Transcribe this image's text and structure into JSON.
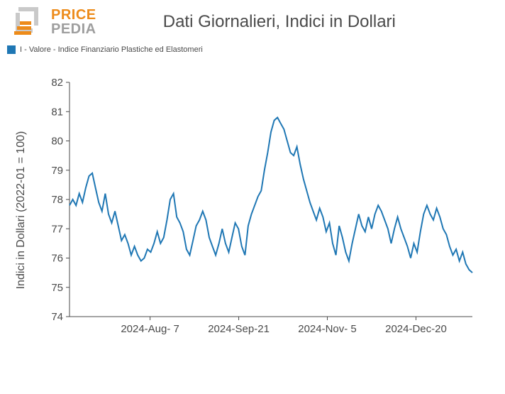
{
  "header": {
    "logo": {
      "line1": "PRICE",
      "line2": "PEDIA",
      "color1": "#ed8b1a",
      "color2": "#9e9e9e"
    },
    "title": "Dati Giornalieri, Indici in Dollari"
  },
  "legend": {
    "swatch_color": "#1f77b4",
    "label": "I - Valore - Indice Finanziario Plastiche ed Elastomeri"
  },
  "chart": {
    "type": "line",
    "y_axis_label": "Indici in Dollari (2022-01 = 100)",
    "ylim": [
      74,
      82
    ],
    "ytick_step": 1,
    "yticks": [
      74,
      75,
      76,
      77,
      78,
      79,
      80,
      81,
      82
    ],
    "xtick_labels": [
      "2024-Aug- 7",
      "2024-Sep-21",
      "2024-Nov- 5",
      "2024-Dec-20"
    ],
    "xtick_positions": [
      0.2,
      0.42,
      0.64,
      0.86
    ],
    "line_color": "#1f77b4",
    "line_width": 2,
    "background_color": "#ffffff",
    "axis_color": "#4a4a4a",
    "title_fontsize": 24,
    "label_fontsize": 16,
    "tick_fontsize": 15,
    "series": {
      "name": "I - Valore - Indice Finanziario Plastiche ed Elastomeri",
      "x": [
        0,
        1,
        2,
        3,
        4,
        5,
        6,
        7,
        8,
        9,
        10,
        11,
        12,
        13,
        14,
        15,
        16,
        17,
        18,
        19,
        20,
        21,
        22,
        23,
        24,
        25,
        26,
        27,
        28,
        29,
        30,
        31,
        32,
        33,
        34,
        35,
        36,
        37,
        38,
        39,
        40,
        41,
        42,
        43,
        44,
        45,
        46,
        47,
        48,
        49,
        50,
        51,
        52,
        53,
        54,
        55,
        56,
        57,
        58,
        59,
        60,
        61,
        62,
        63,
        64,
        65,
        66,
        67,
        68,
        69,
        70,
        71,
        72,
        73,
        74,
        75,
        76,
        77,
        78,
        79,
        80,
        81,
        82,
        83,
        84,
        85,
        86,
        87,
        88,
        89,
        90,
        91,
        92,
        93,
        94,
        95,
        96,
        97,
        98,
        99,
        100,
        101,
        102,
        103,
        104,
        105,
        106,
        107,
        108,
        109,
        110,
        111,
        112,
        113,
        114,
        115,
        116,
        117,
        118,
        119,
        120,
        121,
        122,
        123,
        124
      ],
      "y": [
        77.8,
        78.0,
        77.8,
        78.2,
        77.9,
        78.4,
        78.8,
        78.9,
        78.4,
        77.9,
        77.6,
        78.2,
        77.5,
        77.2,
        77.6,
        77.1,
        76.6,
        76.8,
        76.5,
        76.1,
        76.4,
        76.1,
        75.9,
        76.0,
        76.3,
        76.2,
        76.5,
        76.9,
        76.5,
        76.7,
        77.3,
        78.0,
        78.2,
        77.4,
        77.2,
        76.9,
        76.3,
        76.1,
        76.6,
        77.1,
        77.3,
        77.6,
        77.3,
        76.7,
        76.4,
        76.1,
        76.5,
        77.0,
        76.5,
        76.2,
        76.7,
        77.2,
        77.0,
        76.4,
        76.1,
        77.1,
        77.5,
        77.8,
        78.1,
        78.3,
        79.0,
        79.6,
        80.3,
        80.7,
        80.8,
        80.6,
        80.4,
        80.0,
        79.6,
        79.5,
        79.8,
        79.2,
        78.7,
        78.3,
        77.9,
        77.6,
        77.3,
        77.7,
        77.4,
        76.9,
        77.2,
        76.5,
        76.1,
        77.1,
        76.7,
        76.2,
        75.9,
        76.5,
        77.0,
        77.5,
        77.1,
        76.9,
        77.4,
        77.0,
        77.5,
        77.8,
        77.6,
        77.3,
        77.0,
        76.5,
        77.0,
        77.4,
        77.0,
        76.7,
        76.4,
        76.0,
        76.5,
        76.2,
        76.9,
        77.5,
        77.8,
        77.5,
        77.3,
        77.7,
        77.4,
        77.0,
        76.8,
        76.4,
        76.1,
        76.3,
        75.9,
        76.2,
        75.8,
        75.6,
        75.5
      ]
    }
  }
}
